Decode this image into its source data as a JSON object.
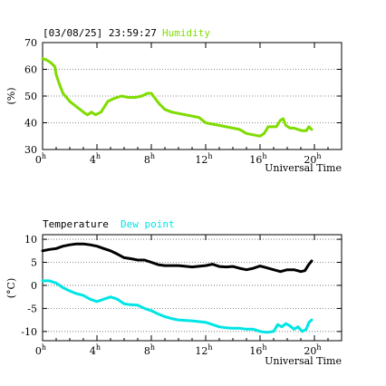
{
  "header": {
    "timestamp": "[03/08/25] 23:59:27",
    "humidity_label": "Humidity",
    "temperature_label": "Temperature",
    "dewpoint_label": "Dew point"
  },
  "colors": {
    "humidity": "#7fdc00",
    "temperature": "#000000",
    "dewpoint": "#00e5e5"
  },
  "chart_data": [
    {
      "type": "line",
      "title": "Humidity",
      "ylabel": "(%)",
      "xlabel": "Universal Time",
      "xlim": [
        0,
        22
      ],
      "ylim": [
        30,
        70
      ],
      "yticks": [
        30,
        40,
        50,
        60,
        70
      ],
      "xticks": [
        0,
        4,
        8,
        12,
        16,
        20
      ],
      "xtick_labels": [
        "0h",
        "4h",
        "8h",
        "12h",
        "16h",
        "20h"
      ],
      "grid": true,
      "series": [
        {
          "name": "Humidity",
          "x": [
            0.0,
            0.3,
            0.6,
            0.9,
            1.0,
            1.2,
            1.5,
            2.0,
            2.5,
            3.0,
            3.3,
            3.6,
            3.9,
            4.3,
            4.8,
            5.2,
            5.8,
            6.3,
            6.8,
            7.3,
            7.7,
            8.0,
            8.3,
            8.6,
            9.0,
            9.5,
            10.0,
            10.5,
            11.0,
            11.5,
            12.0,
            12.5,
            13.0,
            13.5,
            14.0,
            14.5,
            15.0,
            15.5,
            16.0,
            16.3,
            16.6,
            16.9,
            17.2,
            17.5,
            17.7,
            17.9,
            18.2,
            18.5,
            18.8,
            19.1,
            19.4,
            19.6,
            19.8
          ],
          "values": [
            64,
            63.5,
            62.5,
            61,
            58,
            55,
            51,
            48,
            46,
            44,
            43,
            44,
            43,
            44,
            48,
            49,
            50,
            49.5,
            49.5,
            50,
            51,
            51,
            49,
            47,
            45,
            44,
            43.5,
            43,
            42.5,
            42,
            40,
            39.5,
            39,
            38.5,
            38,
            37.5,
            36,
            35.5,
            35,
            36,
            38.5,
            38.5,
            38.5,
            41,
            41.5,
            39,
            38,
            38,
            37.5,
            37,
            37,
            38.5,
            37.5
          ]
        }
      ]
    },
    {
      "type": "line",
      "ylabel": "(°C)",
      "xlabel": "Universal Time",
      "xlim": [
        0,
        22
      ],
      "ylim": [
        -12,
        11
      ],
      "yticks": [
        -10,
        -5,
        0,
        5,
        10
      ],
      "xticks": [
        0,
        4,
        8,
        12,
        16,
        20
      ],
      "xtick_labels": [
        "0h",
        "4h",
        "8h",
        "12h",
        "16h",
        "20h"
      ],
      "grid": true,
      "series": [
        {
          "name": "Temperature",
          "x": [
            0.0,
            0.5,
            1.0,
            1.5,
            2.0,
            2.5,
            3.0,
            3.5,
            4.0,
            4.5,
            5.0,
            5.5,
            6.0,
            6.5,
            7.0,
            7.5,
            8.0,
            8.5,
            9.0,
            10.0,
            11.0,
            12.0,
            12.5,
            13.0,
            13.5,
            14.0,
            14.5,
            15.0,
            15.5,
            16.0,
            16.5,
            17.0,
            17.5,
            18.0,
            18.5,
            19.0,
            19.3,
            19.6,
            19.8
          ],
          "values": [
            7.5,
            7.8,
            8.0,
            8.5,
            8.8,
            9.0,
            9.0,
            8.8,
            8.5,
            8.0,
            7.5,
            6.8,
            6.0,
            5.8,
            5.5,
            5.5,
            5.0,
            4.5,
            4.3,
            4.3,
            4.0,
            4.3,
            4.6,
            4.1,
            4.0,
            4.1,
            3.7,
            3.4,
            3.7,
            4.2,
            3.8,
            3.4,
            3.0,
            3.4,
            3.4,
            3.0,
            3.2,
            4.6,
            5.3
          ]
        },
        {
          "name": "Dew point",
          "x": [
            0.0,
            0.5,
            1.0,
            1.5,
            2.0,
            2.5,
            3.0,
            3.5,
            4.0,
            4.5,
            5.0,
            5.5,
            6.0,
            6.5,
            7.0,
            7.5,
            8.0,
            8.5,
            9.0,
            9.5,
            10.0,
            11.0,
            12.0,
            12.5,
            13.0,
            13.5,
            14.0,
            14.5,
            15.0,
            15.5,
            16.0,
            16.5,
            17.0,
            17.3,
            17.6,
            17.9,
            18.2,
            18.5,
            18.8,
            19.1,
            19.4,
            19.6,
            19.8
          ],
          "values": [
            1.0,
            1.0,
            0.5,
            -0.5,
            -1.2,
            -1.8,
            -2.2,
            -3.0,
            -3.5,
            -3.0,
            -2.5,
            -3.0,
            -4.0,
            -4.2,
            -4.3,
            -5.0,
            -5.5,
            -6.2,
            -6.8,
            -7.2,
            -7.5,
            -7.7,
            -8.0,
            -8.5,
            -9.0,
            -9.2,
            -9.3,
            -9.3,
            -9.5,
            -9.5,
            -10.0,
            -10.2,
            -10.0,
            -8.5,
            -9.0,
            -8.3,
            -8.8,
            -9.5,
            -9.0,
            -10.0,
            -9.5,
            -8.0,
            -7.5
          ]
        }
      ]
    }
  ]
}
